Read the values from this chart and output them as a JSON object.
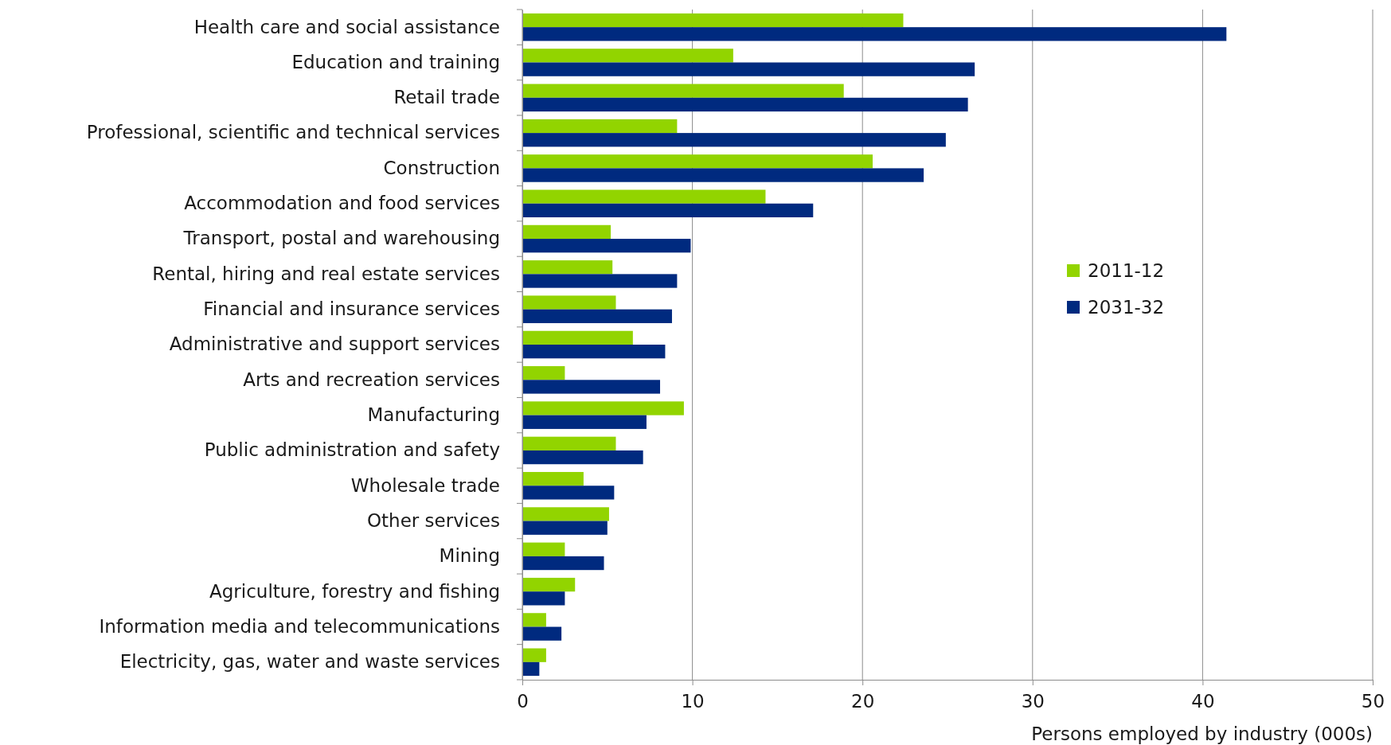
{
  "chart_data": {
    "type": "bar",
    "orientation": "horizontal",
    "xlabel": "Persons employed by industry (000s)",
    "categories": [
      "Health care and social assistance",
      "Education and training",
      "Retail trade",
      "Professional, scientific and technical services",
      "Construction",
      "Accommodation and food services",
      "Transport, postal and warehousing",
      "Rental, hiring and real estate services",
      "Financial and insurance services",
      "Administrative and support services",
      "Arts and recreation services",
      "Manufacturing",
      "Public administration and safety",
      "Wholesale trade",
      "Other services",
      "Mining",
      "Agriculture, forestry and fishing",
      "Information media and telecommunications",
      "Electricity, gas, water and waste services"
    ],
    "series": [
      {
        "name": "2011-12",
        "color": "#92d400",
        "values": [
          22.4,
          12.4,
          18.9,
          9.1,
          20.6,
          14.3,
          5.2,
          5.3,
          5.5,
          6.5,
          2.5,
          9.5,
          5.5,
          3.6,
          5.1,
          2.5,
          3.1,
          1.4,
          1.4
        ]
      },
      {
        "name": "2031-32",
        "color": "#002a7f",
        "values": [
          41.4,
          26.6,
          26.2,
          24.9,
          23.6,
          17.1,
          9.9,
          9.1,
          8.8,
          8.4,
          8.1,
          7.3,
          7.1,
          5.4,
          5.0,
          4.8,
          2.5,
          2.3,
          1.0
        ]
      }
    ],
    "xlim": [
      0,
      50
    ],
    "xticks": [
      0,
      10,
      20,
      30,
      40,
      50
    ],
    "grid": "x",
    "legend": "right"
  }
}
